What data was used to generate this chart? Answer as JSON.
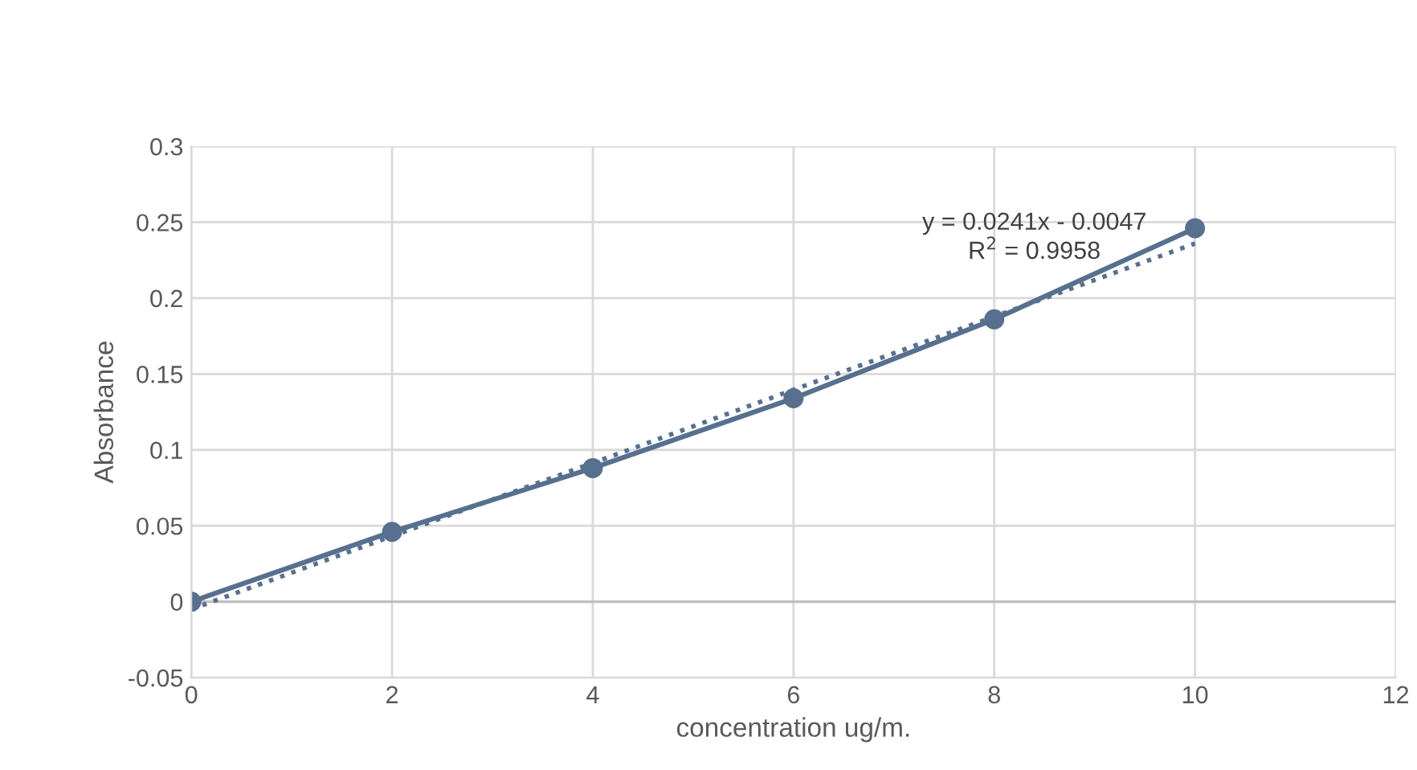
{
  "chart_data": {
    "type": "line",
    "xlabel": "concentration ug/m.",
    "ylabel": "Absorbance",
    "x": [
      0,
      2,
      4,
      6,
      8,
      10
    ],
    "series": [
      {
        "color": "#58708f",
        "values": [
          0,
          0.046,
          0.088,
          0.134,
          0.186,
          0.246
        ],
        "marker": "circle",
        "line_style": "solid"
      },
      {
        "type": "line",
        "color": "#58708f",
        "x": [
          0,
          10
        ],
        "values": [
          -0.005,
          0.236
        ],
        "marker": "none",
        "line_style": "dotted"
      }
    ],
    "annotations": [
      "y = 0.0241x - 0.0047",
      "R$^{2}$ = 0.9958"
    ],
    "xlim": [
      0,
      12
    ],
    "xticks": [
      0,
      2,
      4,
      6,
      8,
      10,
      12
    ],
    "ylim": [
      -0.05,
      0.3
    ],
    "yticks": [
      -0.05,
      0,
      0.05,
      0.1,
      0.15,
      0.2,
      0.25,
      0.3
    ],
    "grid": true,
    "legend": false
  }
}
